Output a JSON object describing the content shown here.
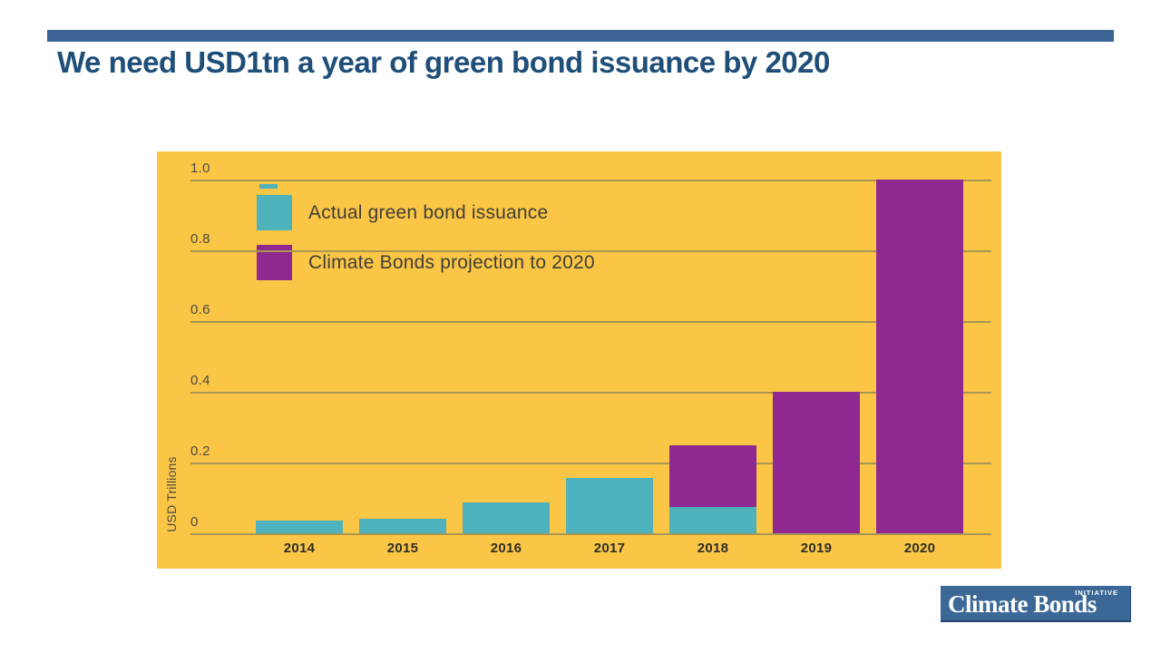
{
  "slide": {
    "title": "We need USD1tn a year of green bond issuance by 2020"
  },
  "colors": {
    "header_bar": "#3B6394",
    "title_text": "#1F4E79",
    "chart_background": "#FBC646",
    "teal": "#4DB2BB",
    "purple": "#8F2891",
    "gridline": "#AA9552",
    "axis_text": "#4A4A42",
    "logo_background": "#3C6897"
  },
  "chart_data": {
    "type": "bar",
    "stacked": true,
    "categories": [
      "2014",
      "2015",
      "2016",
      "2017",
      "2018",
      "2019",
      "2020"
    ],
    "series": [
      {
        "key": "actual",
        "name": "Actual green bond issuance",
        "color": "#4DB2BB",
        "values": [
          0.037,
          0.042,
          0.087,
          0.156,
          0.075,
          0,
          0
        ]
      },
      {
        "key": "projection",
        "name": "Climate Bonds projection to 2020",
        "color": "#8F2891",
        "values": [
          0,
          0,
          0,
          0,
          0.175,
          0.4,
          1.0
        ]
      }
    ],
    "ylabel": "USD Trillions",
    "ylim": [
      0,
      1.0
    ],
    "yticks": [
      0,
      0.2,
      0.4,
      0.6,
      0.8,
      1.0
    ],
    "ytick_labels": [
      "0",
      "0.2",
      "0.4",
      "0.6",
      "0.8",
      "1.0"
    ],
    "grid": true,
    "legend_position": "top-left"
  },
  "logo": {
    "text": "Climate Bonds",
    "superscript": "INITIATIVE"
  }
}
